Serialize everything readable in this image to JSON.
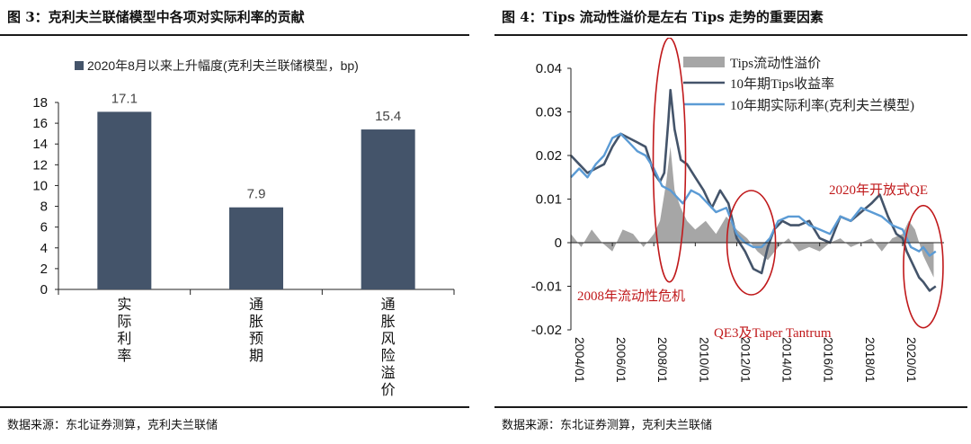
{
  "panels": [
    {
      "title": "图 3：克利夫兰联储模型中各项对实际利率的贡献",
      "source": "数据来源：东北证券测算，克利夫兰联储"
    },
    {
      "title": "图 4：Tips 流动性溢价是左右 Tips 走势的重要因素",
      "source": "数据来源：东北证券测算，克利夫兰联储"
    }
  ],
  "chart_data": [
    {
      "type": "bar",
      "title": "图 3：克利夫兰联储模型中各项对实际利率的贡献",
      "categories": [
        "实际利率",
        "通胀预期",
        "通胀风险溢价"
      ],
      "series": [
        {
          "name": "2020年8月以来上升幅度(克利夫兰联储模型，bp)",
          "values": [
            17.1,
            7.9,
            15.4
          ],
          "color": "#44546a"
        }
      ],
      "ylim": [
        0,
        18
      ],
      "yticks": [
        0,
        2,
        4,
        6,
        8,
        10,
        12,
        14,
        16,
        18
      ],
      "legend": "top",
      "grid": false
    },
    {
      "type": "line",
      "title": "图 4：Tips 流动性溢价是左右 Tips 走势的重要因素",
      "ylim": [
        -0.02,
        0.04
      ],
      "yticks": [
        "-0.02",
        "-0.01",
        "0",
        "0.01",
        "0.02",
        "0.03",
        "0.04"
      ],
      "xticks": [
        "2004/01",
        "2006/01",
        "2008/01",
        "2010/01",
        "2012/01",
        "2014/01",
        "2016/01",
        "2018/01",
        "2020/01"
      ],
      "legend": "top-right",
      "grid": false,
      "series": [
        {
          "name": "Tips流动性溢价",
          "kind": "area",
          "color": "#a6a6a6",
          "x": [
            2004.0,
            2004.5,
            2005.0,
            2005.5,
            2006.0,
            2006.5,
            2007.0,
            2007.5,
            2008.0,
            2008.3,
            2008.6,
            2008.8,
            2009.0,
            2009.3,
            2009.6,
            2010.0,
            2010.5,
            2011.0,
            2011.5,
            2012.0,
            2012.5,
            2013.0,
            2013.5,
            2014.0,
            2014.5,
            2015.0,
            2015.5,
            2016.0,
            2016.5,
            2017.0,
            2017.5,
            2018.0,
            2018.5,
            2019.0,
            2019.5,
            2020.0,
            2020.3,
            2020.6,
            2021.0,
            2021.5
          ],
          "y": [
            0.002,
            -0.001,
            0.003,
            0.0,
            -0.002,
            0.003,
            0.002,
            -0.001,
            0.002,
            0.005,
            0.014,
            0.022,
            0.012,
            0.008,
            0.005,
            0.003,
            0.005,
            0.002,
            0.006,
            0.003,
            0.001,
            -0.002,
            -0.004,
            -0.001,
            0.001,
            -0.002,
            -0.001,
            -0.002,
            0.0,
            0.001,
            -0.001,
            0.0,
            0.001,
            -0.002,
            0.001,
            0.002,
            0.005,
            0.003,
            -0.003,
            -0.008
          ]
        },
        {
          "name": "10年期Tips收益率",
          "kind": "line",
          "color": "#44546a",
          "x": [
            2004.0,
            2004.4,
            2004.8,
            2005.2,
            2005.6,
            2006.0,
            2006.4,
            2006.8,
            2007.2,
            2007.6,
            2008.0,
            2008.3,
            2008.5,
            2008.7,
            2008.8,
            2009.0,
            2009.3,
            2009.6,
            2010.0,
            2010.4,
            2010.8,
            2011.2,
            2011.6,
            2012.0,
            2012.4,
            2012.8,
            2013.2,
            2013.5,
            2013.8,
            2014.2,
            2014.6,
            2015.0,
            2015.5,
            2016.0,
            2016.5,
            2017.0,
            2017.5,
            2018.0,
            2018.5,
            2018.9,
            2019.3,
            2019.7,
            2020.0,
            2020.2,
            2020.5,
            2020.8,
            2021.0,
            2021.3,
            2021.6
          ],
          "y": [
            0.02,
            0.018,
            0.016,
            0.017,
            0.018,
            0.022,
            0.025,
            0.024,
            0.023,
            0.022,
            0.016,
            0.014,
            0.016,
            0.028,
            0.035,
            0.026,
            0.019,
            0.018,
            0.015,
            0.012,
            0.008,
            0.012,
            0.009,
            0.001,
            -0.002,
            -0.006,
            -0.007,
            -0.001,
            0.003,
            0.005,
            0.004,
            0.004,
            0.005,
            0.001,
            0.0,
            0.006,
            0.005,
            0.007,
            0.009,
            0.011,
            0.006,
            0.002,
            0.001,
            -0.002,
            -0.005,
            -0.008,
            -0.009,
            -0.011,
            -0.01
          ]
        },
        {
          "name": "10年期实际利率(克利夫兰模型)",
          "kind": "line",
          "color": "#5b9bd5",
          "x": [
            2004.0,
            2004.4,
            2004.8,
            2005.2,
            2005.6,
            2006.0,
            2006.4,
            2006.8,
            2007.2,
            2007.6,
            2008.0,
            2008.4,
            2008.8,
            2009.0,
            2009.4,
            2009.8,
            2010.2,
            2010.6,
            2011.0,
            2011.5,
            2012.0,
            2012.4,
            2012.8,
            2013.2,
            2013.6,
            2014.0,
            2014.5,
            2015.0,
            2015.5,
            2016.0,
            2016.5,
            2017.0,
            2017.5,
            2018.0,
            2018.5,
            2019.0,
            2019.5,
            2020.0,
            2020.4,
            2020.8,
            2021.0,
            2021.3,
            2021.6
          ],
          "y": [
            0.015,
            0.017,
            0.015,
            0.018,
            0.02,
            0.024,
            0.025,
            0.023,
            0.021,
            0.02,
            0.017,
            0.013,
            0.012,
            0.011,
            0.009,
            0.012,
            0.011,
            0.009,
            0.007,
            0.008,
            0.002,
            0.0,
            -0.001,
            -0.001,
            0.001,
            0.005,
            0.006,
            0.006,
            0.004,
            0.003,
            0.002,
            0.006,
            0.005,
            0.008,
            0.007,
            0.006,
            0.004,
            0.003,
            -0.001,
            -0.002,
            -0.001,
            -0.003,
            -0.002
          ]
        }
      ],
      "annotations": [
        "2008年流动性危机",
        "QE3及Taper Tantrum",
        "2020年开放式QE"
      ]
    }
  ]
}
